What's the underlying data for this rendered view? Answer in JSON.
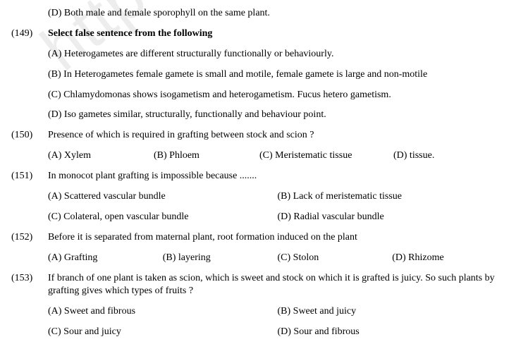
{
  "watermark": "https://www.st",
  "q148": {
    "opt_d": "(D) Both male and female sporophyll on the same plant."
  },
  "q149": {
    "num": "(149)",
    "stem": "Select false sentence from the following",
    "opt_a": "(A) Heterogametes are different structurally functionally or behaviourly.",
    "opt_b": "(B) In Heterogametes female gamete is small and motile, female gamete is large and non-motile",
    "opt_c": "(C) Chlamydomonas shows isogametism and heterogametism. Fucus hetero gametism.",
    "opt_d": "(D) Iso gametes similar, structurally, functionally and behaviour point."
  },
  "q150": {
    "num": "(150)",
    "stem": "Presence of which is required in grafting between stock and scion ?",
    "opt_a": "(A) Xylem",
    "opt_b": "(B) Phloem",
    "opt_c": "(C) Meristematic tissue",
    "opt_d": "(D) tissue."
  },
  "q151": {
    "num": "(151)",
    "stem": "In monocot plant grafting is impossible because .......",
    "opt_a": "(A) Scattered vascular bundle",
    "opt_b": "(B) Lack of meristematic tissue",
    "opt_c": "(C) Colateral, open vascular bundle",
    "opt_d": "(D) Radial vascular bundle"
  },
  "q152": {
    "num": "(152)",
    "stem": "Before it is separated from maternal plant, root formation induced on the plant",
    "opt_a": "(A) Grafting",
    "opt_b": "(B) layering",
    "opt_c": "(C) Stolon",
    "opt_d": "(D) Rhizome"
  },
  "q153": {
    "num": "(153)",
    "stem": "If branch of one plant is taken as scion, which is sweet and stock on which it is grafted is juicy. So such plants by grafting gives which types of fruits ?",
    "opt_a": "(A) Sweet and fibrous",
    "opt_b": "(B) Sweet and juicy",
    "opt_c": "(C) Sour and juicy",
    "opt_d": "(D) Sour and fibrous"
  }
}
